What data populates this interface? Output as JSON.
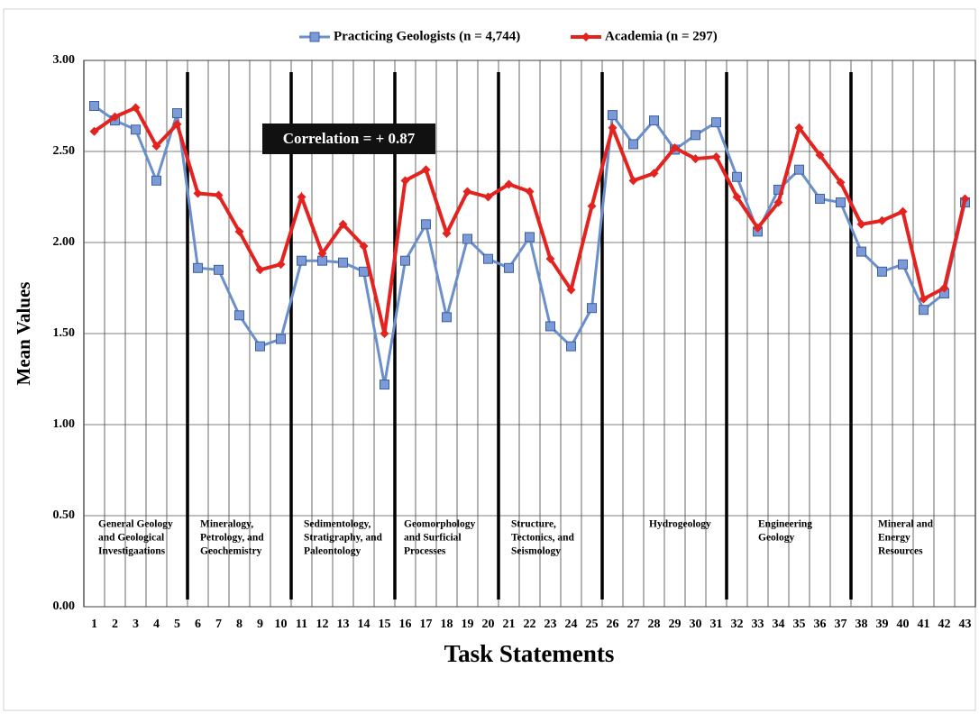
{
  "chart_data": {
    "type": "line",
    "legend": "top",
    "grid": true,
    "xlabel": "Task Statements",
    "ylabel": "Mean Values",
    "annotation": "Correlation = + 0.87",
    "categories": [
      "1",
      "2",
      "3",
      "4",
      "5",
      "6",
      "7",
      "8",
      "9",
      "10",
      "11",
      "12",
      "13",
      "14",
      "15",
      "16",
      "17",
      "18",
      "19",
      "20",
      "21",
      "22",
      "23",
      "24",
      "25",
      "26",
      "27",
      "28",
      "29",
      "30",
      "31",
      "32",
      "33",
      "34",
      "35",
      "36",
      "37",
      "38",
      "39",
      "40",
      "41",
      "42",
      "43"
    ],
    "groups": [
      [
        "General Geology",
        "and Geological",
        "Investigaations"
      ],
      [
        "Mineralogy,",
        "Petrology, and",
        "Geochemistry"
      ],
      [
        "Sedimentology,",
        "Stratigraphy, and",
        "Paleontology"
      ],
      [
        "Geomorphology",
        "and Surficial",
        "Processes"
      ],
      [
        "Structure,",
        "Tectonics, and",
        "Seismology"
      ],
      [
        "Hydrogeology"
      ],
      [
        "Engineering",
        "Geology"
      ],
      [
        "Mineral and",
        "Energy",
        "Resources"
      ]
    ],
    "series": [
      {
        "name": "Practicing Geologists (n = 4,744)",
        "color": "#6a8fca",
        "marker": "square",
        "values": [
          2.75,
          2.67,
          2.62,
          2.34,
          2.71,
          1.86,
          1.85,
          1.6,
          1.43,
          1.47,
          1.9,
          1.9,
          1.89,
          1.84,
          1.22,
          1.9,
          2.1,
          1.59,
          2.02,
          1.91,
          1.86,
          2.03,
          1.54,
          1.43,
          1.64,
          2.7,
          2.54,
          2.67,
          2.51,
          2.59,
          2.66,
          2.36,
          2.06,
          2.29,
          2.4,
          2.24,
          2.22,
          1.95,
          1.84,
          1.88,
          1.63,
          1.72,
          2.22
        ]
      },
      {
        "name": "Academia (n = 297)",
        "color": "#e3231f",
        "marker": "diamond",
        "values": [
          2.61,
          2.69,
          2.74,
          2.53,
          2.65,
          2.27,
          2.26,
          2.06,
          1.85,
          1.88,
          2.25,
          1.94,
          2.1,
          1.98,
          1.5,
          2.34,
          2.4,
          2.05,
          2.28,
          2.25,
          2.32,
          2.28,
          1.91,
          1.74,
          2.2,
          2.63,
          2.34,
          2.38,
          2.52,
          2.46,
          2.47,
          2.25,
          2.08,
          2.22,
          2.63,
          2.48,
          2.33,
          2.1,
          2.12,
          2.17,
          1.69,
          1.75,
          2.24
        ]
      }
    ],
    "ylim": [
      0,
      3
    ],
    "yticks": [
      {
        "value": 0,
        "label": "0.00"
      },
      {
        "value": 0.5,
        "label": "0.50"
      },
      {
        "value": 1,
        "label": "1.00"
      },
      {
        "value": 1.5,
        "label": "1.50"
      },
      {
        "value": 2,
        "label": "2.00"
      },
      {
        "value": 2.5,
        "label": "2.50"
      },
      {
        "value": 3,
        "label": "3.00"
      }
    ]
  }
}
